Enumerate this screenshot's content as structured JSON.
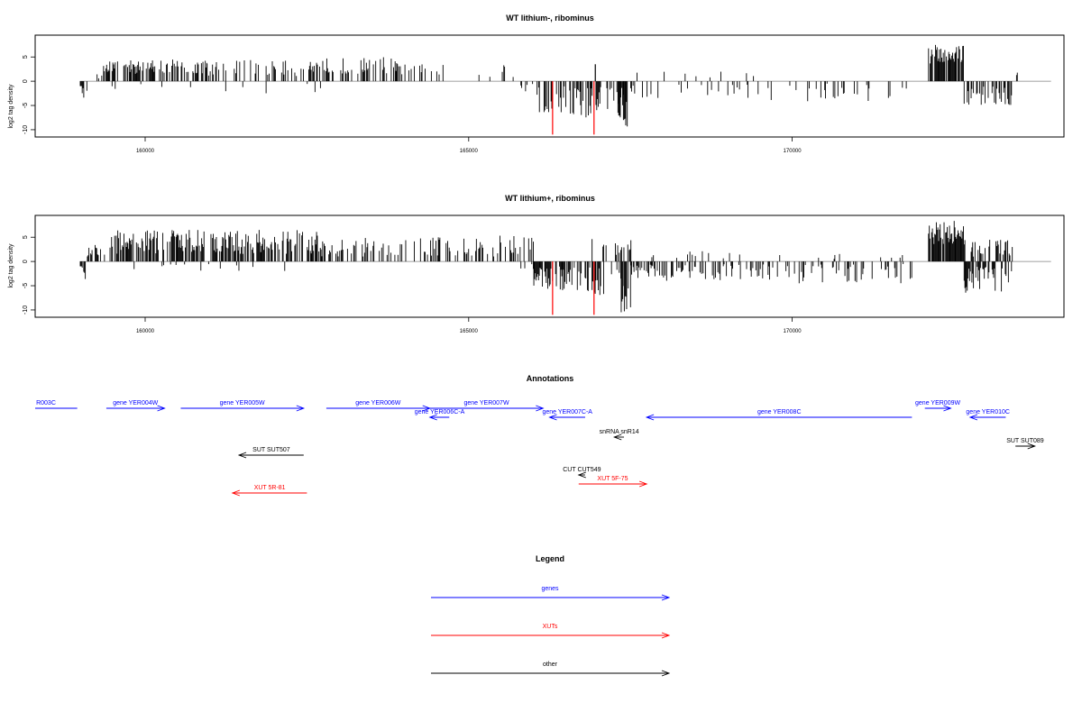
{
  "colors": {
    "gene": "#0000ff",
    "xut": "#ff0000",
    "other": "#000000",
    "baseline": "#808080"
  },
  "panels": [
    {
      "title": "WT lithium-, ribominus",
      "ylabel": "log2 tag density",
      "yticks": [
        {
          "v": 5,
          "label": "5"
        },
        {
          "v": 0,
          "label": "0"
        },
        {
          "v": -5,
          "label": "-5"
        },
        {
          "v": -10,
          "label": "-10"
        }
      ],
      "xticks": [
        {
          "v": 160000,
          "label": "160000"
        },
        {
          "v": 165000,
          "label": "165000"
        },
        {
          "v": 170000,
          "label": "170000"
        }
      ]
    },
    {
      "title": "WT lithium+, ribominus",
      "ylabel": "log2 tag density",
      "yticks": [
        {
          "v": 5,
          "label": "5"
        },
        {
          "v": 0,
          "label": "0"
        },
        {
          "v": -5,
          "label": "-5"
        },
        {
          "v": -10,
          "label": "-10"
        }
      ],
      "xticks": [
        {
          "v": 160000,
          "label": "160000"
        },
        {
          "v": 165000,
          "label": "165000"
        },
        {
          "v": 170000,
          "label": "170000"
        }
      ]
    }
  ],
  "annotations": {
    "title": "Annotations",
    "features": [
      {
        "label": "R003C",
        "start": 158300,
        "end": 158950,
        "dir": "none",
        "type": "gene",
        "row": 0
      },
      {
        "label": "gene YER004W",
        "start": 159400,
        "end": 160300,
        "dir": "right",
        "type": "gene",
        "row": 0
      },
      {
        "label": "gene YER005W",
        "start": 160550,
        "end": 162450,
        "dir": "right",
        "type": "gene",
        "row": 0
      },
      {
        "label": "gene YER006W",
        "start": 162800,
        "end": 164400,
        "dir": "right",
        "type": "gene",
        "row": 0
      },
      {
        "label": "gene YER007W",
        "start": 164400,
        "end": 166150,
        "dir": "right",
        "type": "gene",
        "row": 0
      },
      {
        "label": "gene YER006C-A",
        "start": 164400,
        "end": 164700,
        "dir": "left",
        "type": "gene",
        "row": 1
      },
      {
        "label": "gene YER007C-A",
        "start": 166250,
        "end": 166800,
        "dir": "left",
        "type": "gene",
        "row": 1
      },
      {
        "label": "gene YER008C",
        "start": 167750,
        "end": 171850,
        "dir": "left",
        "type": "gene",
        "row": 1
      },
      {
        "label": "gene YER009W",
        "start": 172050,
        "end": 172450,
        "dir": "right",
        "type": "gene",
        "row": 0
      },
      {
        "label": "gene YER010C",
        "start": 172750,
        "end": 173300,
        "dir": "left",
        "type": "gene",
        "row": 1
      },
      {
        "label": "snRNA snR14",
        "start": 167250,
        "end": 167400,
        "dir": "left",
        "type": "other",
        "row": 2
      },
      {
        "label": "SUT SUT089",
        "start": 173450,
        "end": 173750,
        "dir": "right",
        "type": "other",
        "row": 3
      },
      {
        "label": "SUT SUT507",
        "start": 161450,
        "end": 162450,
        "dir": "left",
        "type": "other",
        "row": 4
      },
      {
        "label": "CUT CUT549",
        "start": 166700,
        "end": 166800,
        "dir": "left",
        "type": "other",
        "row": 5
      },
      {
        "label": "XUT 5F-75",
        "start": 166700,
        "end": 167750,
        "dir": "right",
        "type": "xut",
        "row": 6
      },
      {
        "label": "XUT 5R-81",
        "start": 161350,
        "end": 162500,
        "dir": "left",
        "type": "xut",
        "row": 7
      }
    ]
  },
  "legend": {
    "title": "Legend",
    "items": [
      {
        "label": "genes",
        "type": "gene"
      },
      {
        "label": "XUTs",
        "type": "xut"
      },
      {
        "label": "other",
        "type": "other"
      }
    ]
  },
  "chart_data": [
    {
      "type": "bar",
      "title": "WT lithium-, ribominus",
      "xlabel": "",
      "ylabel": "log2 tag density",
      "xlim": [
        158300,
        174200
      ],
      "ylim": [
        -11.5,
        9.5
      ],
      "segments": [
        {
          "start": 158990,
          "end": 159020,
          "min": 1,
          "max": 1,
          "sign": -1,
          "density": 0.9,
          "seed": 11,
          "color": "#000000"
        },
        {
          "start": 159020,
          "end": 159100,
          "min": 1,
          "max": 5,
          "sign": -1,
          "density": 0.4,
          "seed": 12,
          "color": "#000000"
        },
        {
          "start": 159250,
          "end": 159350,
          "min": 0.5,
          "max": 2.5,
          "sign": 1,
          "density": 0.3,
          "seed": 13,
          "color": "#000000"
        },
        {
          "start": 159350,
          "end": 160950,
          "min": 1.5,
          "max": 4.5,
          "sign": 1,
          "density": 0.5,
          "seed": 14,
          "color": "#000000"
        },
        {
          "start": 159350,
          "end": 160950,
          "min": 0.5,
          "max": 2.5,
          "sign": -1,
          "density": 0.05,
          "seed": 15,
          "color": "#000000"
        },
        {
          "start": 160950,
          "end": 162800,
          "min": 1,
          "max": 4.5,
          "sign": 1,
          "density": 0.3,
          "seed": 16,
          "color": "#000000"
        },
        {
          "start": 160950,
          "end": 162800,
          "min": 0.5,
          "max": 2.5,
          "sign": -1,
          "density": 0.05,
          "seed": 17,
          "color": "#000000"
        },
        {
          "start": 162800,
          "end": 163900,
          "min": 1.5,
          "max": 5,
          "sign": 1,
          "density": 0.45,
          "seed": 18,
          "color": "#000000"
        },
        {
          "start": 163900,
          "end": 164600,
          "min": 1,
          "max": 3.5,
          "sign": 1,
          "density": 0.2,
          "seed": 19,
          "color": "#000000"
        },
        {
          "start": 164600,
          "end": 165800,
          "min": 0.5,
          "max": 3.5,
          "sign": 1,
          "density": 0.08,
          "seed": 20,
          "color": "#000000"
        },
        {
          "start": 165800,
          "end": 166050,
          "min": 0.5,
          "max": 2.5,
          "sign": -1,
          "density": 0.3,
          "seed": 21,
          "color": "#000000"
        },
        {
          "start": 166050,
          "end": 166900,
          "min": 1,
          "max": 7.5,
          "sign": -1,
          "density": 0.55,
          "seed": 22,
          "color": "#000000"
        },
        {
          "start": 166900,
          "end": 167400,
          "min": 1,
          "max": 6.5,
          "sign": -1,
          "density": 0.4,
          "seed": 23,
          "color": "#000000"
        },
        {
          "start": 167300,
          "end": 167450,
          "min": 4,
          "max": 9.5,
          "sign": -1,
          "density": 0.7,
          "seed": 24,
          "color": "#000000"
        },
        {
          "start": 167450,
          "end": 169500,
          "min": 0.5,
          "max": 3.5,
          "sign": -1,
          "density": 0.12,
          "seed": 25,
          "color": "#000000"
        },
        {
          "start": 167450,
          "end": 169500,
          "min": 0.5,
          "max": 2.5,
          "sign": 1,
          "density": 0.05,
          "seed": 26,
          "color": "#000000"
        },
        {
          "start": 169500,
          "end": 172000,
          "min": 0.5,
          "max": 4.5,
          "sign": -1,
          "density": 0.12,
          "seed": 27,
          "color": "#000000"
        },
        {
          "start": 172100,
          "end": 172650,
          "min": 3.5,
          "max": 7.5,
          "sign": 1,
          "density": 0.9,
          "seed": 28,
          "color": "#000000"
        },
        {
          "start": 172650,
          "end": 173400,
          "min": 1,
          "max": 5,
          "sign": -1,
          "density": 0.5,
          "seed": 29,
          "color": "#000000"
        },
        {
          "start": 173400,
          "end": 173500,
          "min": 1,
          "max": 2,
          "sign": 1,
          "density": 0.2,
          "seed": 30,
          "color": "#000000"
        }
      ],
      "spikes": [
        {
          "x": 166290,
          "y": -11,
          "color": "#ff0000"
        },
        {
          "x": 166930,
          "y": -11,
          "color": "#ff0000"
        },
        {
          "x": 166950,
          "y": 3.5,
          "color": "#000000"
        }
      ]
    },
    {
      "type": "bar",
      "title": "WT lithium+, ribominus",
      "xlabel": "",
      "ylabel": "log2 tag density",
      "xlim": [
        158300,
        174200
      ],
      "ylim": [
        -11.5,
        9.5
      ],
      "segments": [
        {
          "start": 158990,
          "end": 159020,
          "min": 1,
          "max": 1,
          "sign": -1,
          "density": 0.9,
          "seed": 41,
          "color": "#000000"
        },
        {
          "start": 159020,
          "end": 159100,
          "min": 1,
          "max": 4,
          "sign": -1,
          "density": 0.4,
          "seed": 42,
          "color": "#000000"
        },
        {
          "start": 159100,
          "end": 159450,
          "min": 0.5,
          "max": 3.5,
          "sign": 1,
          "density": 0.3,
          "seed": 43,
          "color": "#000000"
        },
        {
          "start": 159450,
          "end": 162700,
          "min": 1.5,
          "max": 6.5,
          "sign": 1,
          "density": 0.65,
          "seed": 44,
          "color": "#000000"
        },
        {
          "start": 159450,
          "end": 162700,
          "min": 0.5,
          "max": 2,
          "sign": -1,
          "density": 0.06,
          "seed": 45,
          "color": "#000000"
        },
        {
          "start": 162700,
          "end": 165200,
          "min": 1,
          "max": 5,
          "sign": 1,
          "density": 0.45,
          "seed": 46,
          "color": "#000000"
        },
        {
          "start": 165200,
          "end": 166000,
          "min": 1,
          "max": 5.5,
          "sign": 1,
          "density": 0.4,
          "seed": 47,
          "color": "#000000"
        },
        {
          "start": 165800,
          "end": 166000,
          "min": 0.5,
          "max": 2,
          "sign": -1,
          "density": 0.3,
          "seed": 48,
          "color": "#000000"
        },
        {
          "start": 166000,
          "end": 166900,
          "min": 1,
          "max": 6.5,
          "sign": -1,
          "density": 0.6,
          "seed": 49,
          "color": "#000000"
        },
        {
          "start": 166900,
          "end": 167400,
          "min": 1,
          "max": 7,
          "sign": -1,
          "density": 0.5,
          "seed": 50,
          "color": "#000000"
        },
        {
          "start": 166900,
          "end": 167500,
          "min": 1,
          "max": 5,
          "sign": 1,
          "density": 0.3,
          "seed": 51,
          "color": "#000000"
        },
        {
          "start": 167350,
          "end": 167500,
          "min": 5,
          "max": 10.5,
          "sign": -1,
          "density": 0.75,
          "seed": 52,
          "color": "#000000"
        },
        {
          "start": 167500,
          "end": 169500,
          "min": 0.5,
          "max": 4,
          "sign": -1,
          "density": 0.35,
          "seed": 53,
          "color": "#000000"
        },
        {
          "start": 167500,
          "end": 169500,
          "min": 0.5,
          "max": 2.5,
          "sign": 1,
          "density": 0.1,
          "seed": 54,
          "color": "#000000"
        },
        {
          "start": 169500,
          "end": 171900,
          "min": 0.5,
          "max": 4.5,
          "sign": -1,
          "density": 0.3,
          "seed": 55,
          "color": "#000000"
        },
        {
          "start": 169500,
          "end": 171900,
          "min": 0.5,
          "max": 2,
          "sign": 1,
          "density": 0.05,
          "seed": 56,
          "color": "#000000"
        },
        {
          "start": 172100,
          "end": 172650,
          "min": 3.5,
          "max": 8.5,
          "sign": 1,
          "density": 0.9,
          "seed": 57,
          "color": "#000000"
        },
        {
          "start": 172650,
          "end": 173400,
          "min": 1,
          "max": 6.5,
          "sign": -1,
          "density": 0.6,
          "seed": 58,
          "color": "#000000"
        },
        {
          "start": 172650,
          "end": 173400,
          "min": 1,
          "max": 5,
          "sign": 1,
          "density": 0.4,
          "seed": 59,
          "color": "#000000"
        }
      ],
      "spikes": [
        {
          "x": 166290,
          "y": -11,
          "color": "#ff0000"
        },
        {
          "x": 166930,
          "y": -11,
          "color": "#ff0000"
        }
      ]
    }
  ]
}
